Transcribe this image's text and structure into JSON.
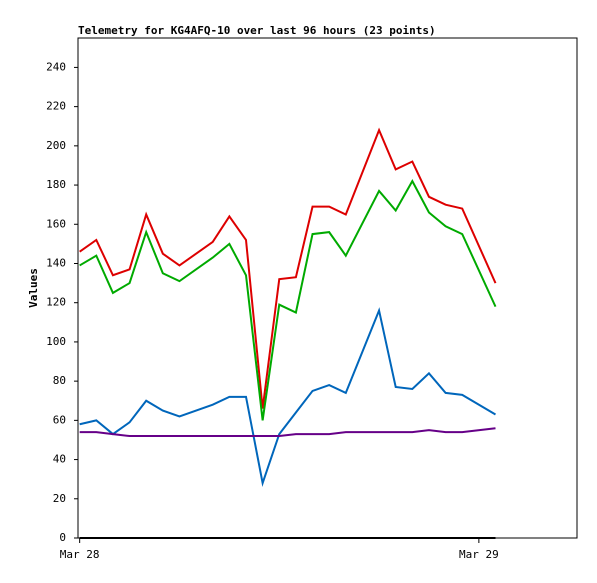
{
  "chart_data": {
    "type": "line",
    "title": "Telemetry for KG4AFQ-10 over last 96 hours (23 points)",
    "y_label": "Values",
    "x": [
      0,
      1,
      2,
      3,
      4,
      5,
      6,
      8,
      9,
      10,
      11,
      12,
      13,
      14,
      15,
      16,
      18,
      19,
      20,
      21,
      22,
      23,
      25
    ],
    "xlim": [
      -0.1,
      29.9
    ],
    "xticks": [
      {
        "value": 0,
        "label": "Mar 28"
      },
      {
        "value": 24,
        "label": "Mar 29"
      }
    ],
    "ylim": [
      0,
      255
    ],
    "yticks": [
      0,
      20,
      40,
      60,
      80,
      100,
      120,
      140,
      160,
      180,
      200,
      220,
      240
    ],
    "grid": false,
    "series": [
      {
        "color": "#dd0000",
        "values": [
          146,
          152,
          134,
          137,
          165,
          145,
          139,
          151,
          164,
          152,
          66,
          132,
          133,
          169,
          169,
          165,
          208,
          188,
          192,
          174,
          170,
          168,
          130
        ]
      },
      {
        "color": "#00aa00",
        "values": [
          139,
          144,
          125,
          130,
          156,
          135,
          131,
          143,
          150,
          134,
          60,
          119,
          115,
          155,
          156,
          144,
          177,
          167,
          182,
          166,
          159,
          155,
          118
        ]
      },
      {
        "color": "#0066bb",
        "values": [
          58,
          60,
          53,
          59,
          70,
          65,
          62,
          68,
          72,
          72,
          28,
          53,
          64,
          75,
          78,
          74,
          116,
          77,
          76,
          84,
          74,
          73,
          63
        ]
      },
      {
        "color": "#660088",
        "values": [
          54,
          54,
          53,
          52,
          52,
          52,
          52,
          52,
          52,
          52,
          52,
          52,
          53,
          53,
          53,
          54,
          54,
          54,
          54,
          55,
          54,
          54,
          56
        ]
      },
      {
        "color": "#000000",
        "values": [
          0,
          0,
          0,
          0,
          0,
          0,
          0,
          0,
          0,
          0,
          0,
          0,
          0,
          0,
          0,
          0,
          0,
          0,
          0,
          0,
          0,
          0,
          0
        ]
      }
    ]
  }
}
